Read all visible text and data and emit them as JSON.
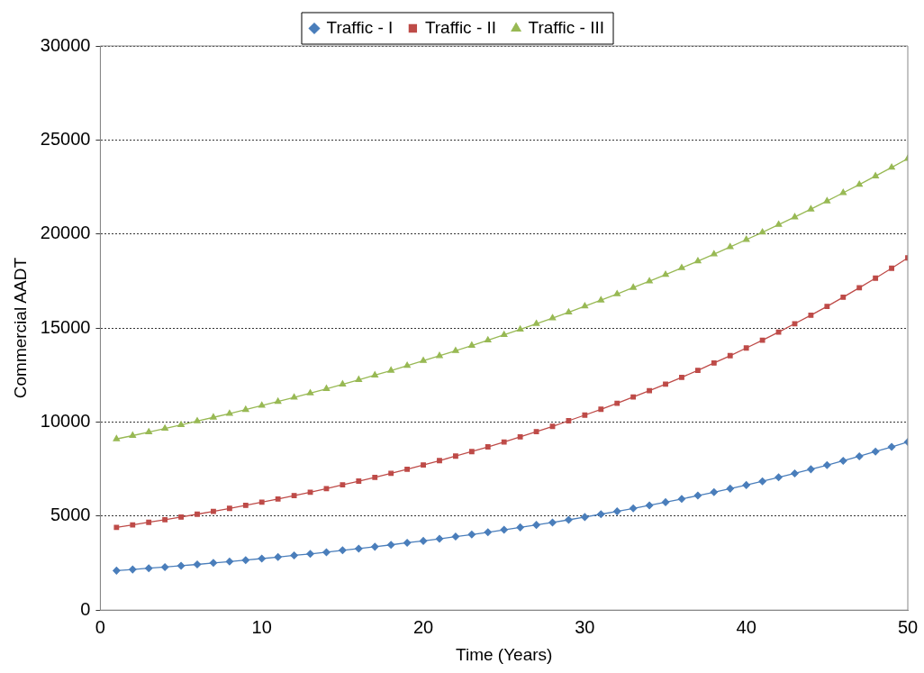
{
  "chart_data": {
    "type": "line",
    "xlabel": "Time (Years)",
    "ylabel": "Commercial AADT",
    "x": [
      1,
      2,
      3,
      4,
      5,
      6,
      7,
      8,
      9,
      10,
      11,
      12,
      13,
      14,
      15,
      16,
      17,
      18,
      19,
      20,
      21,
      22,
      23,
      24,
      25,
      26,
      27,
      28,
      29,
      30,
      31,
      32,
      33,
      34,
      35,
      36,
      37,
      38,
      39,
      40,
      41,
      42,
      43,
      44,
      45,
      46,
      47,
      48,
      49,
      50
    ],
    "series": [
      {
        "name": "Traffic - I",
        "color": "#4a7ebb",
        "marker": "diamond",
        "values": [
          2100,
          2160,
          2230,
          2290,
          2360,
          2430,
          2510,
          2580,
          2660,
          2740,
          2820,
          2910,
          2990,
          3080,
          3180,
          3270,
          3370,
          3470,
          3580,
          3680,
          3790,
          3910,
          4020,
          4140,
          4270,
          4400,
          4530,
          4660,
          4800,
          4950,
          5100,
          5250,
          5410,
          5570,
          5740,
          5910,
          6090,
          6270,
          6460,
          6650,
          6850,
          7060,
          7270,
          7490,
          7710,
          7940,
          8180,
          8430,
          8680,
          8940
        ]
      },
      {
        "name": "Traffic - II",
        "color": "#be4b48",
        "marker": "square",
        "values": [
          4400,
          4530,
          4670,
          4810,
          4950,
          5100,
          5250,
          5410,
          5570,
          5740,
          5910,
          6090,
          6270,
          6460,
          6660,
          6860,
          7060,
          7270,
          7490,
          7720,
          7950,
          8190,
          8430,
          8680,
          8940,
          9210,
          9490,
          9770,
          10070,
          10370,
          10680,
          11000,
          11330,
          11670,
          12020,
          12380,
          12750,
          13140,
          13530,
          13940,
          14350,
          14780,
          15230,
          15680,
          16150,
          16640,
          17140,
          17650,
          18180,
          18730
        ]
      },
      {
        "name": "Traffic - III",
        "color": "#98b954",
        "marker": "triangle",
        "values": [
          9100,
          9280,
          9470,
          9660,
          9850,
          10050,
          10250,
          10450,
          10660,
          10880,
          11090,
          11310,
          11540,
          11770,
          12010,
          12250,
          12490,
          12740,
          13000,
          13260,
          13520,
          13790,
          14070,
          14350,
          14640,
          14930,
          15230,
          15530,
          15840,
          16160,
          16480,
          16810,
          17150,
          17490,
          17840,
          18200,
          18560,
          18930,
          19310,
          19700,
          20090,
          20500,
          20900,
          21320,
          21750,
          22190,
          22630,
          23080,
          23540,
          24010
        ]
      }
    ],
    "xlim": [
      0,
      50
    ],
    "xticks": [
      0,
      10,
      20,
      30,
      40,
      50
    ],
    "ylim": [
      0,
      30000
    ],
    "yticks": [
      0,
      5000,
      10000,
      15000,
      20000,
      25000,
      30000
    ],
    "grid": "y",
    "legend": "top",
    "line_style": "solid"
  }
}
